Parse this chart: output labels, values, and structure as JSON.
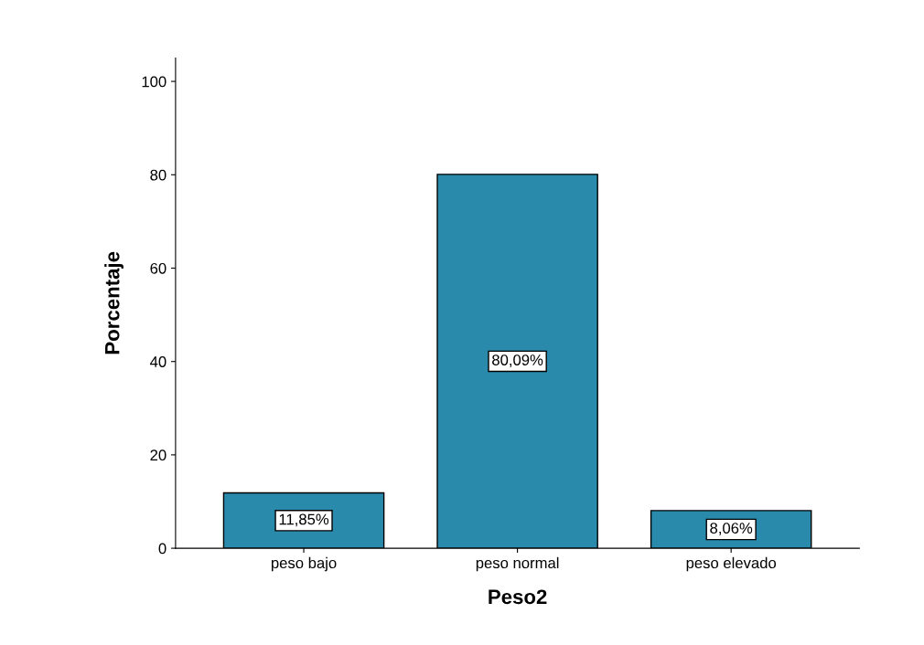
{
  "chart_data": {
    "type": "bar",
    "xlabel": "Peso2",
    "ylabel": "Porcentaje",
    "categories": [
      "peso bajo",
      "peso normal",
      "peso elevado"
    ],
    "values": [
      11.85,
      80.09,
      8.06
    ],
    "value_labels": [
      "11,85%",
      "80,09%",
      "8,06%"
    ],
    "color": "#2a8aab",
    "ylim": [
      0,
      105
    ],
    "yticks": [
      0,
      20,
      40,
      60,
      80,
      100
    ],
    "grid": false
  }
}
